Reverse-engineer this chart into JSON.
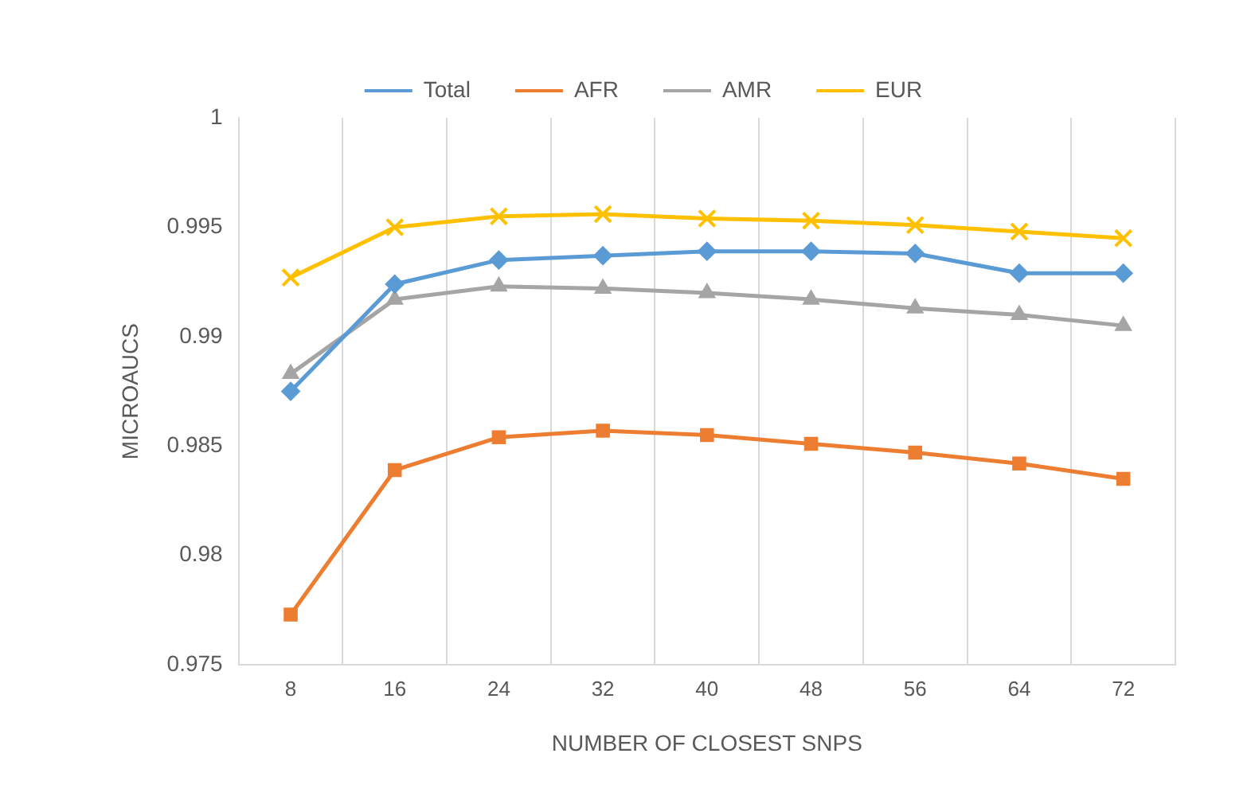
{
  "chart_data": {
    "type": "line",
    "xlabel": "NUMBER OF CLOSEST SNPS",
    "ylabel": "MICROAUCS",
    "categories": [
      "8",
      "16",
      "24",
      "32",
      "40",
      "48",
      "56",
      "64",
      "72"
    ],
    "ylim": [
      0.975,
      1
    ],
    "yticks": [
      0.975,
      0.98,
      0.985,
      0.99,
      0.995,
      1
    ],
    "grid": "x",
    "legend": "top",
    "series": [
      {
        "name": "Total",
        "color": "#5b9bd5",
        "marker": "diamond",
        "values": [
          0.9875,
          0.9924,
          0.9935,
          0.9937,
          0.9939,
          0.9939,
          0.9938,
          0.9929,
          0.9929
        ]
      },
      {
        "name": "AFR",
        "color": "#ed7d31",
        "marker": "square",
        "values": [
          0.9773,
          0.9839,
          0.9854,
          0.9857,
          0.9855,
          0.9851,
          0.9847,
          0.9842,
          0.9835
        ]
      },
      {
        "name": "AMR",
        "color": "#a5a5a5",
        "marker": "triangle",
        "values": [
          0.9883,
          0.9917,
          0.9923,
          0.9922,
          0.992,
          0.9917,
          0.9913,
          0.991,
          0.9905
        ]
      },
      {
        "name": "EUR",
        "color": "#ffc000",
        "marker": "cross",
        "values": [
          0.9927,
          0.995,
          0.9955,
          0.9956,
          0.9954,
          0.9953,
          0.9951,
          0.9948,
          0.9945
        ]
      }
    ]
  }
}
